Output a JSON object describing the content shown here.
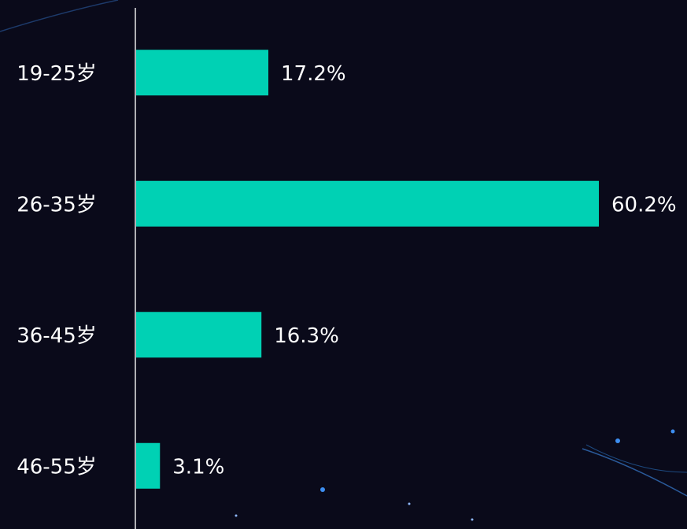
{
  "chart_data": {
    "type": "bar",
    "orientation": "horizontal",
    "categories": [
      "19-25岁",
      "26-35岁",
      "36-45岁",
      "46-55岁"
    ],
    "values": [
      17.2,
      60.2,
      16.3,
      3.1
    ],
    "value_labels": [
      "17.2%",
      "60.2%",
      "16.3%",
      "3.1%"
    ],
    "color": "#00d1b4"
  }
}
